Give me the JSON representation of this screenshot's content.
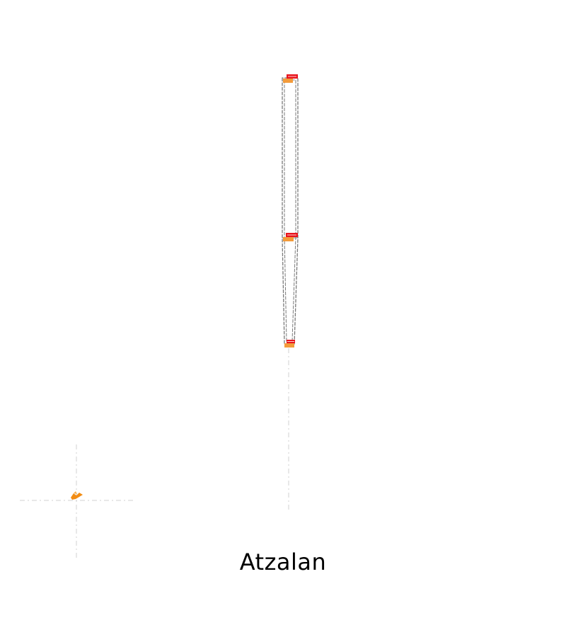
{
  "caption": "Atzalan",
  "colors": {
    "background": "#ffffff",
    "outline": "#7a7a7a",
    "guide": "#d0d0d0",
    "marker_orange": "#f39b3a",
    "marker_red": "#e8141c",
    "glyph_orange": "#f28c13",
    "text": "#000000"
  },
  "icons": {
    "marker": "junction-marker-icon",
    "glyph": "bird-glyph-icon"
  }
}
